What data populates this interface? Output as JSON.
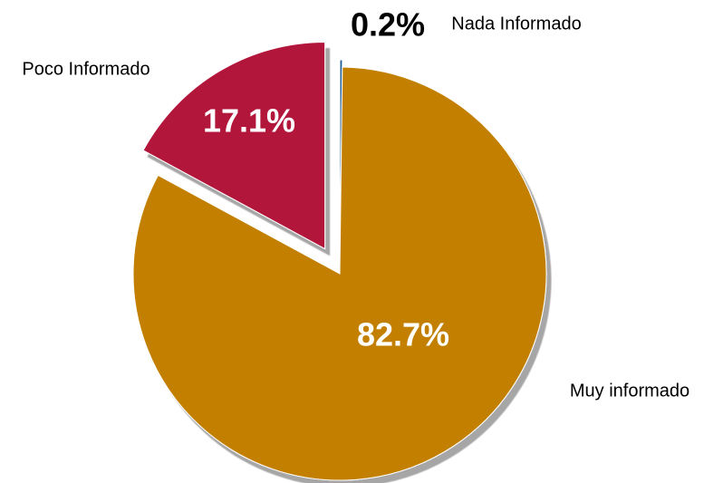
{
  "chart_data": {
    "type": "pie",
    "categories": [
      "Nada Informado",
      "Muy informado",
      "Poco Informado"
    ],
    "values": [
      0.2,
      82.7,
      17.1
    ],
    "value_labels": [
      "0.2%",
      "82.7%",
      "17.1%"
    ],
    "colors": [
      "#1f5c99",
      "#c38000",
      "#b3133b"
    ]
  }
}
